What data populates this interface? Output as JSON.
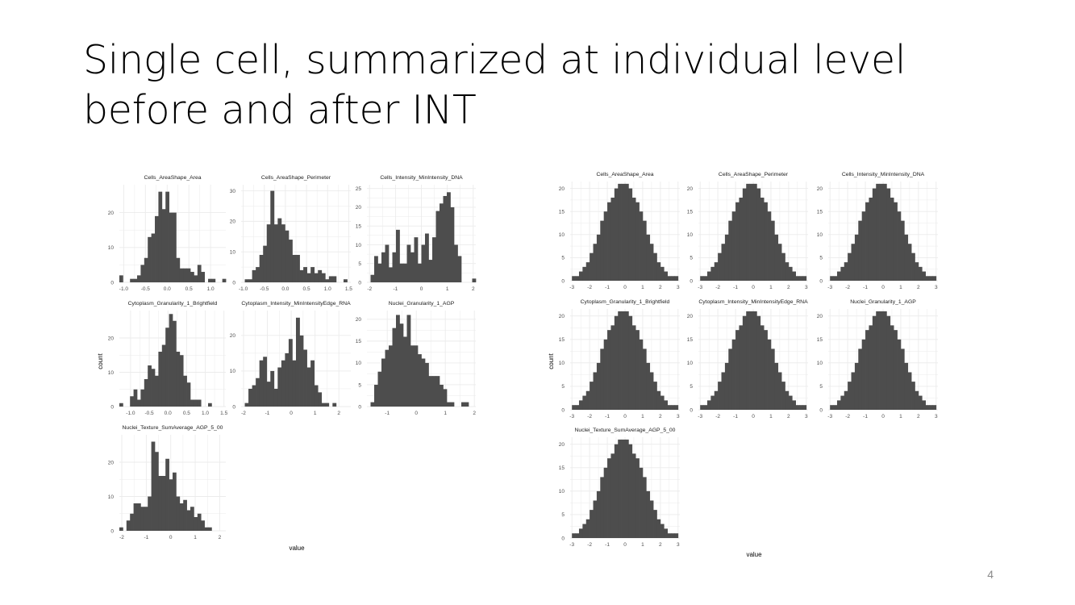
{
  "slide": {
    "title_line1": "Single cell, summarized at individual level",
    "title_line2": "before and after INT",
    "page_number": "4"
  },
  "chart_data": [
    {
      "type": "bar",
      "subtype": "faceted-histogram",
      "xlabel": "value",
      "ylabel": "count",
      "bar_color": "#4d4d4d",
      "grid": true,
      "facets": [
        {
          "title": "Cells_AreaShape_Area",
          "xlim": [
            -1.1,
            1.35
          ],
          "ylim": [
            0,
            28
          ],
          "xticks": [
            -1.0,
            -0.5,
            0.0,
            0.5,
            1.0
          ],
          "xtick_labels": [
            "-1.0",
            "-0.5",
            "0.0",
            "0.5",
            "1.0"
          ],
          "yticks": [
            0,
            10,
            20
          ],
          "ytick_labels": [
            "0",
            "10",
            "20"
          ],
          "bin_start": -1.1,
          "bin_width": 0.0817,
          "counts": [
            2,
            0,
            0,
            1,
            1,
            2,
            5,
            7,
            13,
            14,
            19,
            26,
            21,
            26,
            20,
            20,
            7,
            4,
            4,
            4,
            3,
            2,
            5,
            3,
            0,
            1,
            1,
            0,
            0,
            1
          ]
        },
        {
          "title": "Cells_AreaShape_Perimeter",
          "xlim": [
            -1.05,
            1.55
          ],
          "ylim": [
            0,
            32
          ],
          "xticks": [
            -1.0,
            -0.5,
            0.0,
            0.5,
            1.0,
            1.5
          ],
          "xtick_labels": [
            "-1.0",
            "-0.5",
            "0.0",
            "0.5",
            "1.0",
            "1.5"
          ],
          "yticks": [
            0,
            10,
            20,
            30
          ],
          "ytick_labels": [
            "0",
            "10",
            "20",
            "30"
          ],
          "bin_start": -1.05,
          "bin_width": 0.0867,
          "counts": [
            0,
            1,
            1,
            4,
            5,
            9,
            12,
            19,
            30,
            19,
            21,
            19,
            17,
            14,
            9,
            9,
            4,
            5,
            3,
            5,
            3,
            4,
            3,
            1,
            2,
            2,
            0,
            0,
            1,
            0
          ]
        },
        {
          "title": "Cells_Intensity_MinIntensity_DNA",
          "xlim": [
            -2.1,
            2.1
          ],
          "ylim": [
            0,
            26
          ],
          "xticks": [
            -2,
            -1,
            0,
            1,
            2
          ],
          "xtick_labels": [
            "-2",
            "-1",
            "0",
            "1",
            "2"
          ],
          "yticks": [
            0,
            5,
            10,
            15,
            20,
            25
          ],
          "ytick_labels": [
            "0",
            "5",
            "10",
            "15",
            "20",
            "25"
          ],
          "bin_start": -2.1,
          "bin_width": 0.14,
          "counts": [
            0,
            2,
            7,
            5,
            8,
            10,
            4,
            8,
            14,
            5,
            5,
            10,
            8,
            12,
            5,
            10,
            13,
            6,
            12,
            19,
            21,
            23,
            24,
            20,
            10,
            7,
            0,
            0,
            0,
            1
          ]
        },
        {
          "title": "Cytoplasm_Granularity_1_Brightfield",
          "xlim": [
            -1.3,
            1.55
          ],
          "ylim": [
            0,
            28
          ],
          "xticks": [
            -1.0,
            -0.5,
            0.0,
            0.5,
            1.0,
            1.5
          ],
          "xtick_labels": [
            "-1.0",
            "-0.5",
            "0.0",
            "0.5",
            "1.0",
            "1.5"
          ],
          "yticks": [
            0,
            10,
            20
          ],
          "ytick_labels": [
            "0",
            "10",
            "20"
          ],
          "bin_start": -1.3,
          "bin_width": 0.095,
          "counts": [
            1,
            0,
            0,
            3,
            5,
            2,
            5,
            8,
            12,
            11,
            9,
            16,
            18,
            23,
            27,
            25,
            16,
            15,
            9,
            7,
            2,
            2,
            2,
            0,
            0,
            1,
            0,
            0,
            0,
            0
          ]
        },
        {
          "title": "Cytoplasm_Intensity_MinIntensityEdge_RNA",
          "xlim": [
            -2.1,
            2.5
          ],
          "ylim": [
            0,
            27
          ],
          "xticks": [
            -2,
            -1,
            0,
            1,
            2
          ],
          "xtick_labels": [
            "-2",
            "-1",
            "0",
            "1",
            "2"
          ],
          "yticks": [
            0,
            10,
            20
          ],
          "ytick_labels": [
            "0",
            "10",
            "20"
          ],
          "bin_start": -2.1,
          "bin_width": 0.1533,
          "counts": [
            0,
            1,
            5,
            6,
            8,
            13,
            14,
            7,
            10,
            5,
            11,
            13,
            15,
            19,
            13,
            25,
            20,
            16,
            11,
            13,
            6,
            4,
            1,
            1,
            0,
            1,
            0,
            0,
            0,
            0
          ]
        },
        {
          "title": "Nuclei_Granularity_1_AGP",
          "xlim": [
            -1.7,
            2.05
          ],
          "ylim": [
            0,
            22
          ],
          "xticks": [
            -1,
            0,
            1,
            2
          ],
          "xtick_labels": [
            "-1",
            "0",
            "1",
            "2"
          ],
          "yticks": [
            0,
            5,
            10,
            15,
            20
          ],
          "ytick_labels": [
            "0",
            "5",
            "10",
            "15",
            "20"
          ],
          "bin_start": -1.7,
          "bin_width": 0.125,
          "counts": [
            0,
            1,
            5,
            8,
            11,
            13,
            14,
            18,
            21,
            19,
            16,
            21,
            14,
            14,
            12,
            11,
            10,
            7,
            7,
            7,
            5,
            4,
            1,
            1,
            0,
            0,
            1,
            1,
            0,
            0
          ]
        },
        {
          "title": "Nuclei_Texture_SumAverage_AGP_5_00",
          "xlim": [
            -2.1,
            2.25
          ],
          "ylim": [
            0,
            28
          ],
          "xticks": [
            -2,
            -1,
            0,
            1,
            2
          ],
          "xtick_labels": [
            "-2",
            "-1",
            "0",
            "1",
            "2"
          ],
          "yticks": [
            0,
            10,
            20
          ],
          "ytick_labels": [
            "0",
            "10",
            "20"
          ],
          "bin_start": -2.1,
          "bin_width": 0.145,
          "counts": [
            1,
            0,
            3,
            5,
            8,
            8,
            7,
            7,
            10,
            26,
            23,
            16,
            16,
            21,
            15,
            17,
            10,
            8,
            9,
            6,
            7,
            4,
            5,
            3,
            1,
            1,
            0,
            0,
            0,
            0
          ]
        }
      ]
    },
    {
      "type": "bar",
      "subtype": "faceted-histogram",
      "xlabel": "value",
      "ylabel": "count",
      "bar_color": "#4d4d4d",
      "grid": true,
      "shared_axes": {
        "xlim": [
          -3.1,
          3.1
        ],
        "ylim": [
          0,
          21.5
        ],
        "xticks": [
          -3,
          -2,
          -1,
          0,
          1,
          2,
          3
        ],
        "xtick_labels": [
          "-3",
          "-2",
          "-1",
          "0",
          "1",
          "2",
          "3"
        ],
        "yticks": [
          0,
          5,
          10,
          15,
          20
        ],
        "ytick_labels": [
          "0",
          "5",
          "10",
          "15",
          "20"
        ],
        "bin_start": -3,
        "bin_width": 0.2,
        "counts": [
          1,
          1,
          2,
          3,
          4,
          6,
          8,
          10,
          13,
          15,
          17,
          18,
          20,
          21,
          21,
          21,
          20,
          18,
          17,
          15,
          13,
          10,
          8,
          6,
          4,
          3,
          2,
          1,
          1,
          1
        ]
      },
      "facets": [
        {
          "title": "Cells_AreaShape_Area"
        },
        {
          "title": "Cells_AreaShape_Perimeter"
        },
        {
          "title": "Cells_Intensity_MinIntensity_DNA"
        },
        {
          "title": "Cytoplasm_Granularity_1_Brightfield"
        },
        {
          "title": "Cytoplasm_Intensity_MinIntensityEdge_RNA"
        },
        {
          "title": "Nuclei_Granularity_1_AGP"
        },
        {
          "title": "Nuclei_Texture_SumAverage_AGP_5_00"
        }
      ]
    }
  ]
}
